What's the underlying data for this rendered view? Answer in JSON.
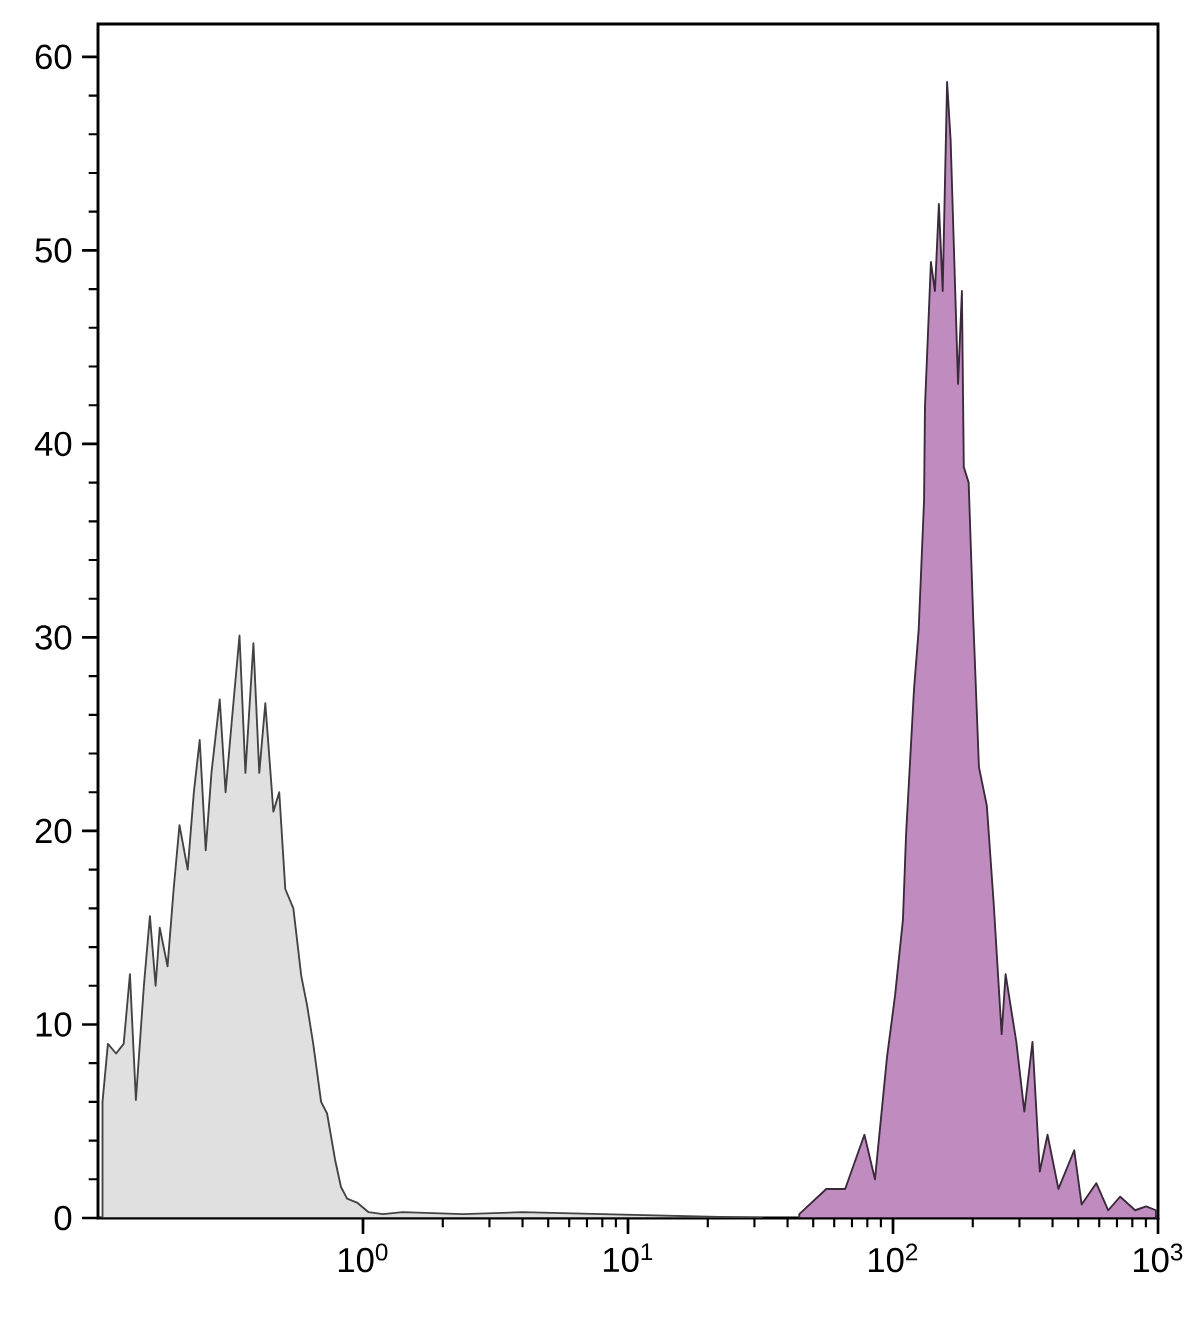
{
  "chart_data": {
    "type": "area",
    "xlim": [
      0.1,
      1000
    ],
    "ylim": [
      0,
      61.7
    ],
    "log": "x",
    "grid": false,
    "xticks": [
      {
        "value": 1,
        "label": "10$^{0}$"
      },
      {
        "value": 10,
        "label": "10$^{1}$"
      },
      {
        "value": 100,
        "label": "10$^{2}$"
      },
      {
        "value": 1000,
        "label": "10$^{3}$"
      }
    ],
    "yticks": [
      0,
      10,
      20,
      30,
      40,
      50,
      60
    ],
    "series": [
      {
        "color": "#e0e0e0",
        "x": [
          0.104,
          0.109,
          0.117,
          0.125,
          0.132,
          0.139,
          0.149,
          0.157,
          0.165,
          0.171,
          0.183,
          0.193,
          0.203,
          0.218,
          0.23,
          0.242,
          0.255,
          0.268,
          0.288,
          0.303,
          0.319,
          0.342,
          0.36,
          0.386,
          0.406,
          0.428,
          0.459,
          0.483,
          0.509,
          0.546,
          0.585,
          0.615,
          0.649,
          0.695,
          0.732,
          0.785,
          0.826,
          0.871,
          0.949,
          1.05,
          1.19,
          1.41,
          2.38,
          4.0,
          8.0,
          16.0,
          32
        ],
        "values": [
          6,
          9,
          8.5,
          9,
          12.6,
          6.1,
          12,
          15.6,
          12,
          15,
          13,
          17,
          20.3,
          18,
          22,
          24.7,
          19,
          23,
          26.8,
          22,
          25.5,
          30.1,
          23,
          29.7,
          23,
          26.6,
          21,
          22,
          17,
          16,
          12.5,
          11,
          9,
          6,
          5.4,
          3,
          1.6,
          1,
          0.8,
          0.3,
          0.2,
          0.3,
          0.2,
          0.3,
          0.2,
          0.1,
          0
        ]
      },
      {
        "color": "#c08cc0",
        "x": [
          44.3,
          56.0,
          66.0,
          78.0,
          85.5,
          94.9,
          101.8,
          109,
          112,
          120,
          125,
          131,
          132,
          139,
          144,
          149,
          154,
          160,
          165,
          169,
          176,
          182,
          185,
          193,
          201,
          211,
          226,
          240,
          257,
          266,
          292,
          313,
          336,
          358,
          383,
          421,
          483,
          515,
          585,
          649,
          720,
          820,
          902,
          982
        ],
        "values": [
          0.2,
          1.5,
          1.5,
          4.3,
          2,
          8.3,
          11.5,
          15.4,
          19.8,
          27.3,
          30.4,
          37.1,
          41.9,
          49.4,
          47.9,
          52.4,
          47.9,
          58.7,
          55.7,
          51,
          43.1,
          47.9,
          38.8,
          38,
          30.8,
          23.3,
          21.3,
          16.2,
          9.5,
          12.6,
          9.1,
          5.5,
          9.1,
          2.4,
          4.3,
          1.5,
          3.5,
          0.7,
          1.8,
          0.4,
          1.1,
          0.4,
          0.6,
          0.4
        ]
      }
    ]
  }
}
